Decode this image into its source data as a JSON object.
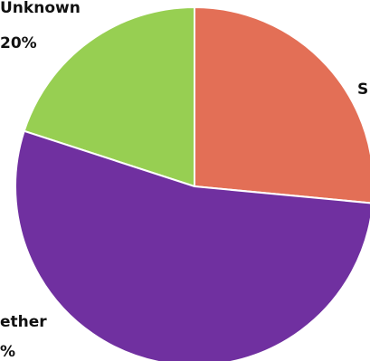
{
  "chart_data": {
    "type": "pie",
    "slices": [
      {
        "label": "Unknown",
        "value_label": "20%",
        "value": 20,
        "color": "#97cf52"
      },
      {
        "label": "S",
        "value_label": "",
        "value": 26.5,
        "color": "#e36f56"
      },
      {
        "label": "ether",
        "value_label": "%",
        "value": 53.5,
        "color": "#7030a0"
      }
    ]
  }
}
